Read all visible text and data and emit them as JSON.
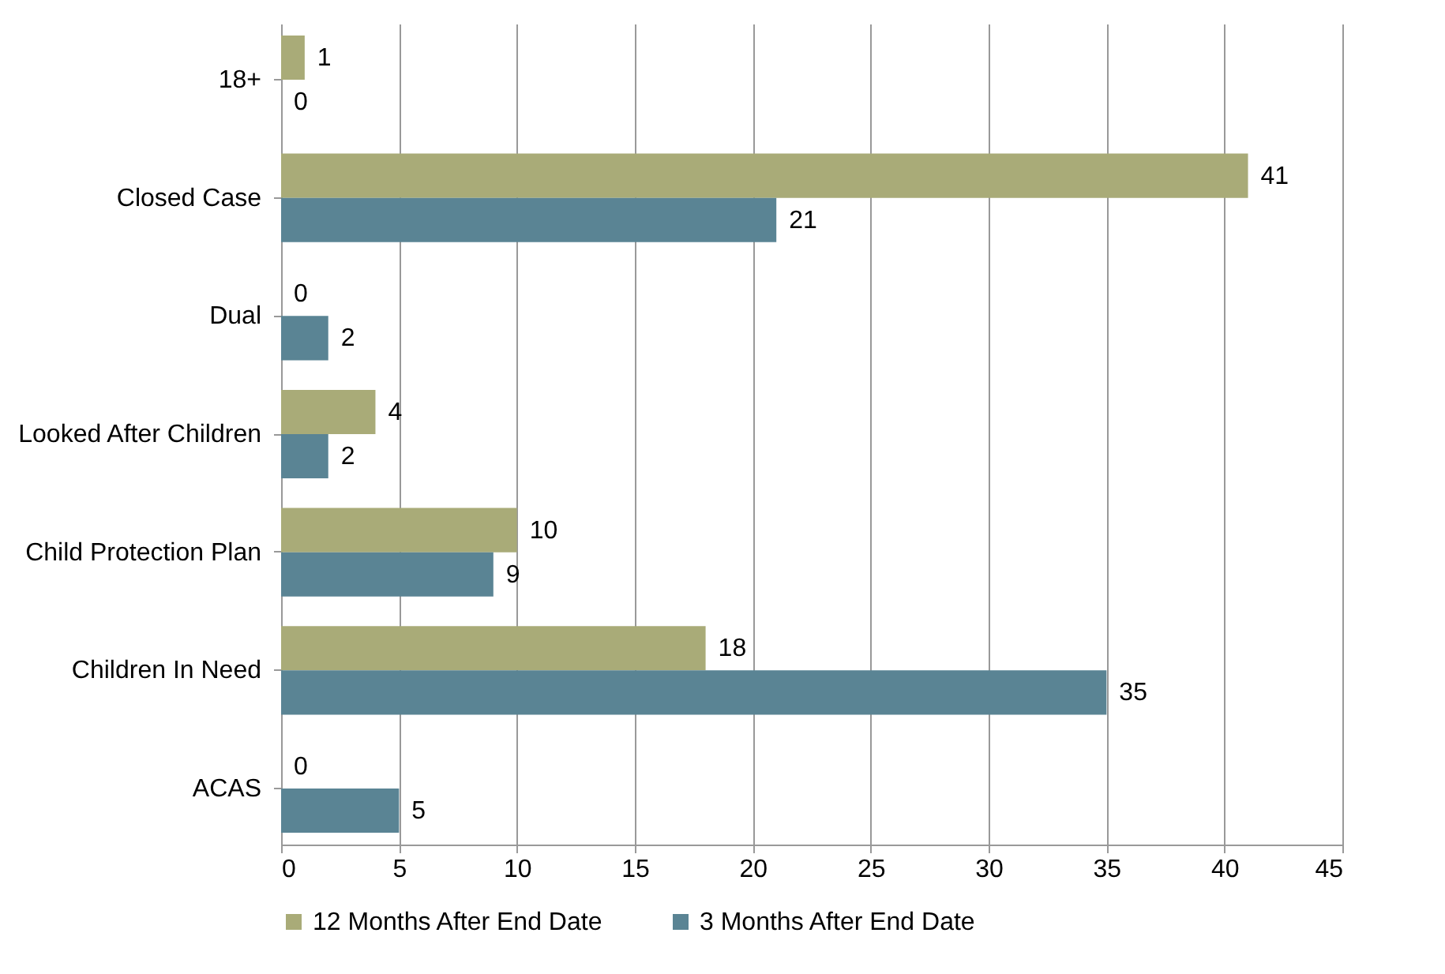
{
  "chart_data": {
    "type": "bar",
    "orientation": "horizontal",
    "categories": [
      "18+",
      "Closed Case",
      "Dual",
      "Looked After Children",
      "Child Protection Plan",
      "Children In Need",
      "ACAS"
    ],
    "series": [
      {
        "name": "12 Months After End Date",
        "color": "#a9ab78",
        "values": [
          1,
          41,
          0,
          4,
          10,
          18,
          0
        ]
      },
      {
        "name": "3 Months After End Date",
        "color": "#5a8494",
        "values": [
          0,
          21,
          2,
          2,
          9,
          35,
          5
        ]
      }
    ],
    "xlim": [
      0,
      45
    ],
    "xticks": [
      0,
      5,
      10,
      15,
      20,
      25,
      30,
      35,
      40,
      45
    ],
    "grid": "x",
    "legend": "bottom",
    "data_labels": true
  }
}
